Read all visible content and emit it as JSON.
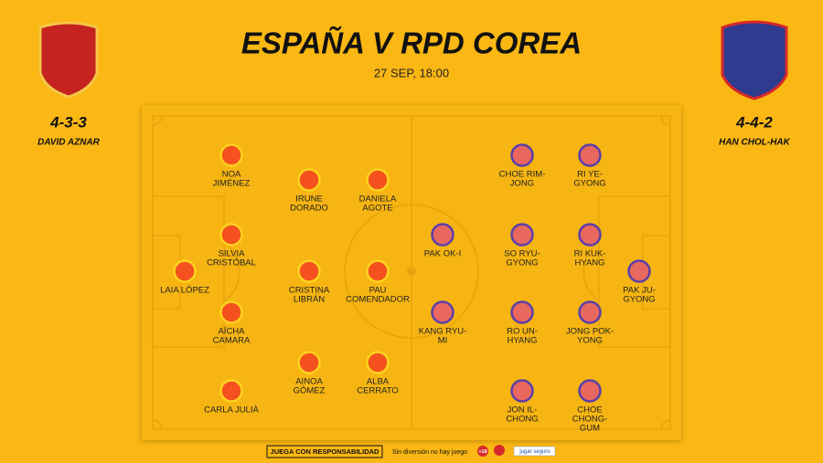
{
  "header": {
    "title": "ESPAÑA V RPD COREA",
    "datetime": "27 SEP, 18:00"
  },
  "teams": [
    {
      "formation": "4-3-3",
      "coach": "DAVID AZNAR",
      "players": [
        {
          "name": [
            "LAIA LÓPEZ"
          ]
        },
        {
          "name": [
            "NOA",
            "JIMÉNEZ"
          ]
        },
        {
          "name": [
            "SILVIA",
            "CRISTÓBAL"
          ]
        },
        {
          "name": [
            "AÏCHA",
            "CAMARA"
          ]
        },
        {
          "name": [
            "CARLA JULIÀ"
          ]
        },
        {
          "name": [
            "IRUNE",
            "DORADO"
          ]
        },
        {
          "name": [
            "CRISTINA",
            "LIBRÁN"
          ]
        },
        {
          "name": [
            "AINOA",
            "GÓMEZ"
          ]
        },
        {
          "name": [
            "DANIELA",
            "AGOTE"
          ]
        },
        {
          "name": [
            "PAU",
            "COMENDADOR"
          ]
        },
        {
          "name": [
            "ALBA",
            "CERRATO"
          ]
        }
      ]
    },
    {
      "formation": "4-4-2",
      "coach": "HAN CHOL-HAK",
      "players": [
        {
          "name": [
            "PAK JU-",
            "GYONG"
          ]
        },
        {
          "name": [
            "RI YE-",
            "GYONG"
          ]
        },
        {
          "name": [
            "RI KUK-",
            "HYANG"
          ]
        },
        {
          "name": [
            "JONG POK-",
            "YONG"
          ]
        },
        {
          "name": [
            "CHOE",
            "CHONG-",
            "GUM"
          ]
        },
        {
          "name": [
            "CHOE RIM-",
            "JONG"
          ]
        },
        {
          "name": [
            "SO RYU-",
            "GYONG"
          ]
        },
        {
          "name": [
            "RO UN-",
            "HYANG"
          ]
        },
        {
          "name": [
            "JON IL-",
            "CHONG"
          ]
        },
        {
          "name": [
            "PAK OK-I"
          ]
        },
        {
          "name": [
            "KANG RYU-",
            "MI"
          ]
        }
      ]
    }
  ],
  "footer": {
    "responsible": "JUEGA CON RESPONSABILIDAD",
    "slogan": "Sin diversión no hay juego",
    "age": "+18",
    "safe": "jugar seguro"
  }
}
